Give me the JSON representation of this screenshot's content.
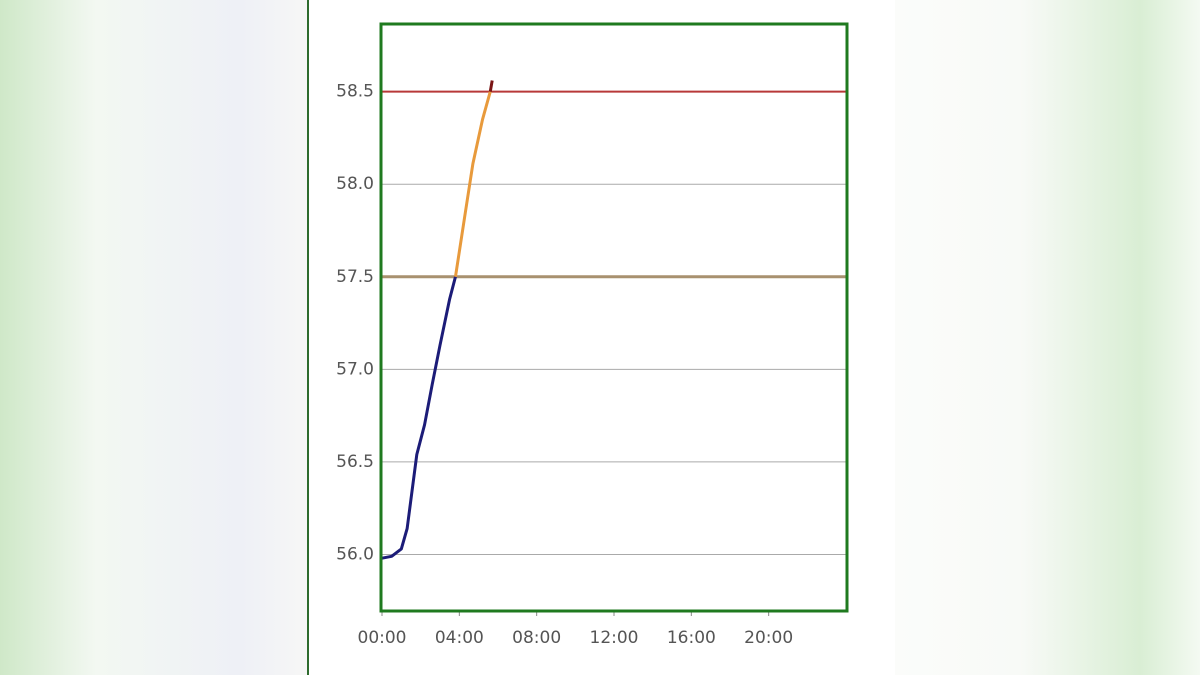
{
  "chart_data": {
    "type": "line",
    "xlim": [
      0,
      24
    ],
    "xticks": [
      {
        "value": 0,
        "label": "00:00"
      },
      {
        "value": 4,
        "label": "04:00"
      },
      {
        "value": 8,
        "label": "08:00"
      },
      {
        "value": 12,
        "label": "12:00"
      },
      {
        "value": 16,
        "label": "16:00"
      },
      {
        "value": 20,
        "label": "20:00"
      }
    ],
    "ylim": [
      55.7,
      58.86
    ],
    "yticks": [
      {
        "value": 56.0,
        "label": "56.0"
      },
      {
        "value": 56.5,
        "label": "56.5"
      },
      {
        "value": 57.0,
        "label": "57.0"
      },
      {
        "value": 57.5,
        "label": "57.5"
      },
      {
        "value": 58.0,
        "label": "58.0"
      },
      {
        "value": 58.5,
        "label": "58.5"
      }
    ],
    "grid": true,
    "thresholds": [
      {
        "value": 57.5,
        "color": "#a8916f"
      },
      {
        "value": 58.5,
        "color": "#b83838"
      }
    ],
    "series": [
      {
        "color": "#1c1c78",
        "x": [
          0,
          0.5,
          1.0,
          1.3,
          1.5,
          1.8,
          2.2,
          2.6,
          3.0,
          3.5,
          3.8
        ],
        "values": [
          55.98,
          55.99,
          56.03,
          56.14,
          56.3,
          56.54,
          56.7,
          56.92,
          57.13,
          57.38,
          57.5
        ]
      },
      {
        "color": "#e89a3c",
        "x": [
          3.8,
          4.3,
          4.7,
          5.2,
          5.6
        ],
        "values": [
          57.5,
          57.84,
          58.11,
          58.35,
          58.5
        ]
      },
      {
        "color": "#7a1414",
        "x": [
          5.6,
          5.7
        ],
        "values": [
          58.5,
          58.56
        ]
      }
    ]
  }
}
